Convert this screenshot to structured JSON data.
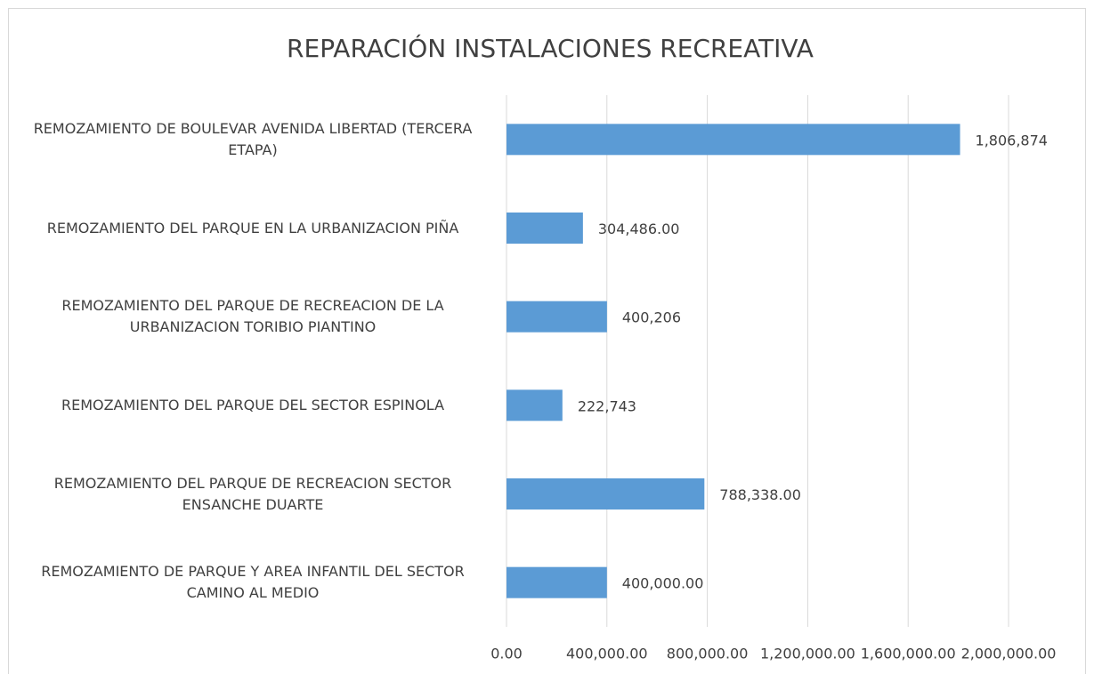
{
  "chart_data": {
    "type": "barh",
    "title": "REPARACIÓN INSTALACIONES RECREATIVA",
    "categories": [
      "REMOZAMIENTO DE BOULEVAR AVENIDA LIBERTAD (TERCERA ETAPA)",
      "REMOZAMIENTO DEL PARQUE EN LA URBANIZACION PIÑA",
      "REMOZAMIENTO DEL PARQUE DE RECREACION DE LA URBANIZACION TORIBIO PIANTINO",
      "REMOZAMIENTO DEL PARQUE DEL SECTOR ESPINOLA",
      "REMOZAMIENTO DEL PARQUE DE RECREACION SECTOR ENSANCHE DUARTE",
      "REMOZAMIENTO DE PARQUE Y AREA INFANTIL DEL SECTOR CAMINO AL MEDIO"
    ],
    "values": [
      1806874,
      304486,
      400206,
      222743,
      788338,
      400000
    ],
    "value_labels": [
      "1,806,874",
      "304,486.00",
      "400,206",
      "222,743",
      "788,338.00",
      "400,000.00"
    ],
    "color": "#5b9bd5",
    "xlim": [
      0,
      2000000
    ],
    "xticks": [
      {
        "value": 0,
        "label": "0.00"
      },
      {
        "value": 400000,
        "label": "400,000.00"
      },
      {
        "value": 800000,
        "label": "800,000.00"
      },
      {
        "value": 1200000,
        "label": "1,200,000.00"
      },
      {
        "value": 1600000,
        "label": "1,600,000.00"
      },
      {
        "value": 2000000,
        "label": "2,000,000.00"
      }
    ],
    "grid": true
  }
}
